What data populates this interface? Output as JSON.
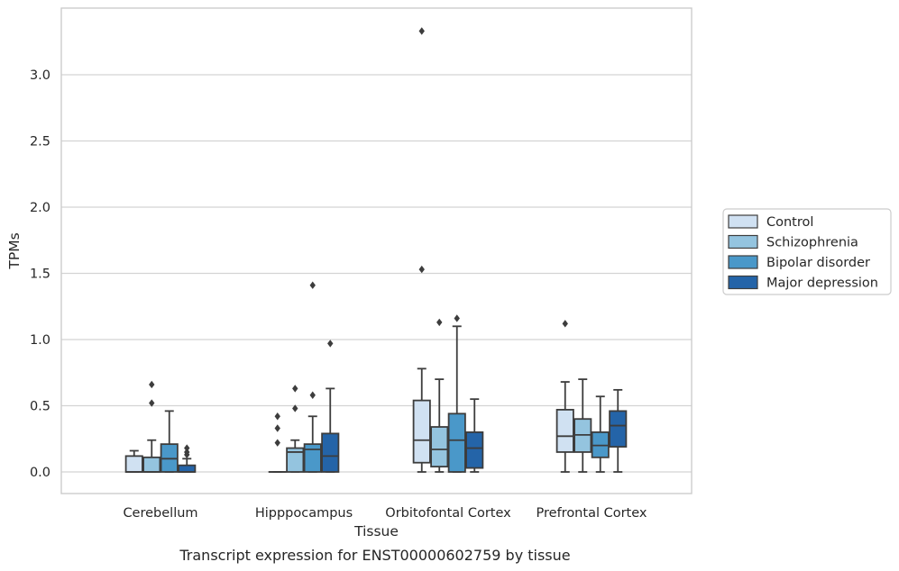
{
  "chart_data": {
    "type": "box",
    "caption": "Transcript expression for ENST00000602759 by tissue",
    "xlabel": "Tissue",
    "ylabel": "TPMs",
    "ylim": [
      -0.16,
      3.52
    ],
    "yticks": [
      "0.0",
      "0.5",
      "1.0",
      "1.5",
      "2.0",
      "2.5",
      "3.0"
    ],
    "grid": true,
    "legend_position": "right",
    "categories": [
      "Cerebellum",
      "Hipppocampus",
      "Orbitofontal Cortex",
      "Prefrontal Cortex"
    ],
    "series": [
      {
        "name": "Control",
        "color": "#d0e1f2",
        "boxes": [
          {
            "whislo": 0.0,
            "q1": 0.0,
            "med": 0.0,
            "q3": 0.12,
            "whishi": 0.16,
            "fliers": []
          },
          {
            "whislo": 0.0,
            "q1": 0.0,
            "med": 0.0,
            "q3": 0.0,
            "whishi": 0.0,
            "fliers": [
              0.22,
              0.33,
              0.42
            ]
          },
          {
            "whislo": 0.0,
            "q1": 0.07,
            "med": 0.24,
            "q3": 0.54,
            "whishi": 0.78,
            "fliers": [
              1.53,
              3.33
            ]
          },
          {
            "whislo": 0.0,
            "q1": 0.15,
            "med": 0.27,
            "q3": 0.47,
            "whishi": 0.68,
            "fliers": [
              1.12
            ]
          }
        ]
      },
      {
        "name": "Schizophrenia",
        "color": "#94c4df",
        "boxes": [
          {
            "whislo": 0.0,
            "q1": 0.0,
            "med": 0.0,
            "q3": 0.11,
            "whishi": 0.24,
            "fliers": [
              0.52,
              0.66
            ]
          },
          {
            "whislo": 0.0,
            "q1": 0.0,
            "med": 0.15,
            "q3": 0.18,
            "whishi": 0.24,
            "fliers": [
              0.48,
              0.63
            ]
          },
          {
            "whislo": 0.0,
            "q1": 0.04,
            "med": 0.17,
            "q3": 0.34,
            "whishi": 0.7,
            "fliers": [
              1.13
            ]
          },
          {
            "whislo": 0.0,
            "q1": 0.15,
            "med": 0.28,
            "q3": 0.4,
            "whishi": 0.7,
            "fliers": []
          }
        ]
      },
      {
        "name": "Bipolar disorder",
        "color": "#4a98c9",
        "boxes": [
          {
            "whislo": 0.0,
            "q1": 0.0,
            "med": 0.1,
            "q3": 0.21,
            "whishi": 0.46,
            "fliers": []
          },
          {
            "whislo": 0.0,
            "q1": 0.0,
            "med": 0.17,
            "q3": 0.21,
            "whishi": 0.42,
            "fliers": [
              0.58,
              1.41
            ]
          },
          {
            "whislo": 0.0,
            "q1": 0.0,
            "med": 0.24,
            "q3": 0.44,
            "whishi": 1.1,
            "fliers": [
              1.16
            ]
          },
          {
            "whislo": 0.0,
            "q1": 0.11,
            "med": 0.2,
            "q3": 0.3,
            "whishi": 0.57,
            "fliers": []
          }
        ]
      },
      {
        "name": "Major depression",
        "color": "#2464a8",
        "boxes": [
          {
            "whislo": 0.0,
            "q1": 0.0,
            "med": 0.0,
            "q3": 0.05,
            "whishi": 0.1,
            "fliers": [
              0.13,
              0.15,
              0.18
            ]
          },
          {
            "whislo": 0.0,
            "q1": 0.0,
            "med": 0.12,
            "q3": 0.29,
            "whishi": 0.63,
            "fliers": [
              0.97
            ]
          },
          {
            "whislo": 0.0,
            "q1": 0.03,
            "med": 0.18,
            "q3": 0.3,
            "whishi": 0.55,
            "fliers": []
          },
          {
            "whislo": 0.0,
            "q1": 0.19,
            "med": 0.35,
            "q3": 0.46,
            "whishi": 0.62,
            "fliers": []
          }
        ]
      }
    ]
  }
}
